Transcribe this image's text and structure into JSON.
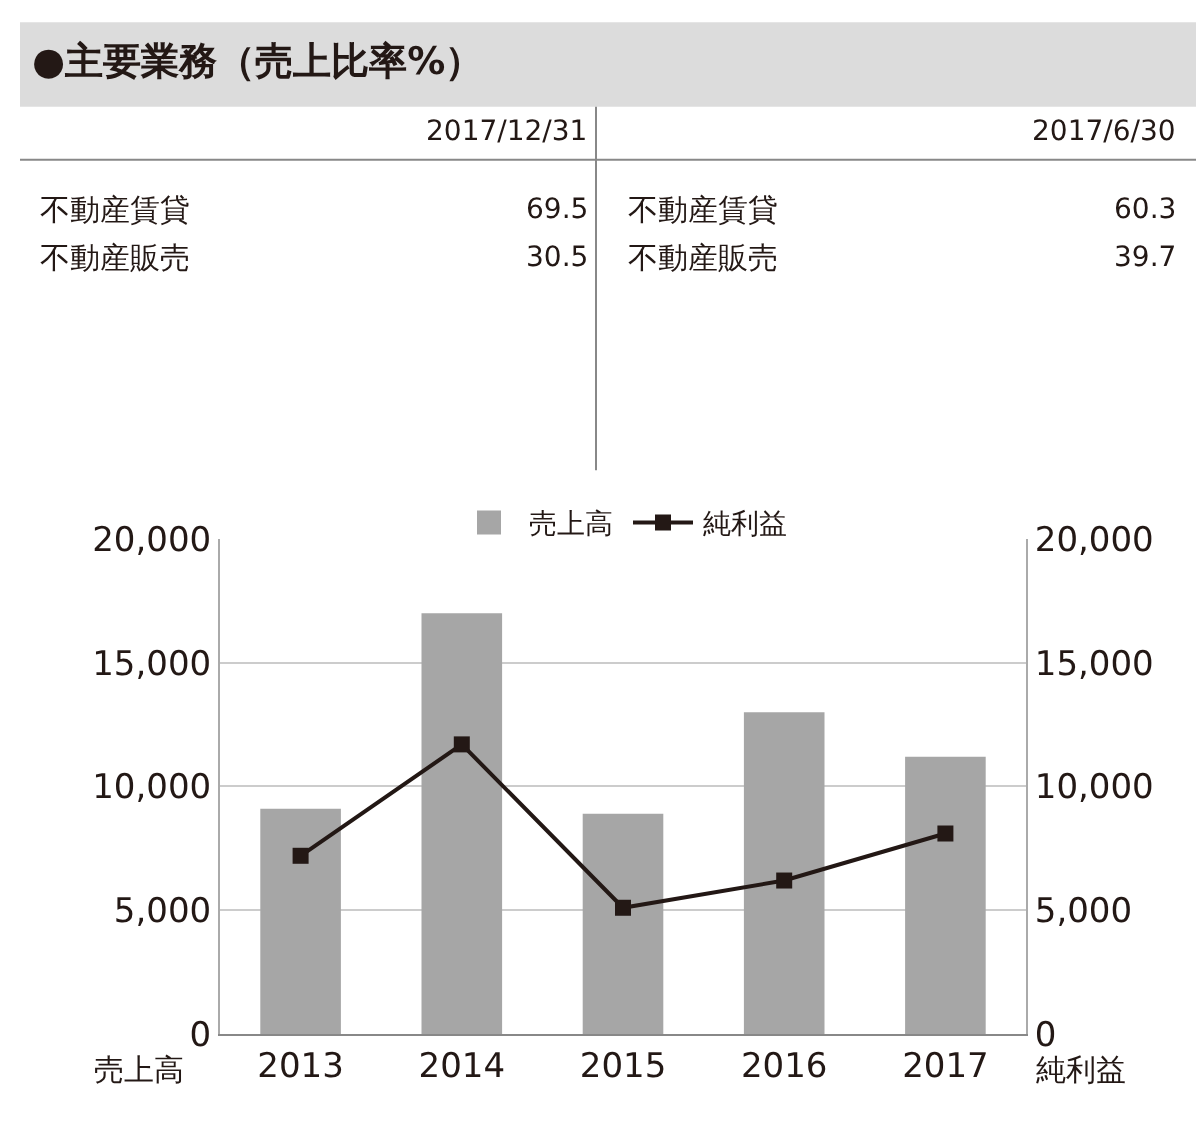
{
  "chart_data": [
    {
      "type": "other",
      "title": "●主要業務（売上比率%）",
      "categories": [
        "不動産賃貸",
        "不動産販売"
      ],
      "data_labels": true,
      "series": [
        {
          "name": "2017/12/31",
          "values": [
            69.5,
            30.5
          ]
        },
        {
          "name": "2017/6/30",
          "values": [
            60.3,
            39.7
          ]
        }
      ]
    },
    {
      "type": "bar",
      "categories": [
        "2013",
        "2014",
        "2015",
        "2016",
        "2017"
      ],
      "ylabel": "売上高",
      "y2label": "純利益",
      "ylim": [
        0,
        20000
      ],
      "yticks": [
        {
          "value": 0,
          "label": "0"
        },
        {
          "value": 5000,
          "label": "5,000"
        },
        {
          "value": 10000,
          "label": "10,000"
        },
        {
          "value": 15000,
          "label": "15,000"
        },
        {
          "value": 20000,
          "label": "20,000"
        }
      ],
      "y2lim": [
        0,
        20000
      ],
      "y2ticks": [
        {
          "value": 0,
          "label": "0"
        },
        {
          "value": 5000,
          "label": "5,000"
        },
        {
          "value": 10000,
          "label": "10,000"
        },
        {
          "value": 15000,
          "label": "15,000"
        },
        {
          "value": 20000,
          "label": "20,000"
        }
      ],
      "grid": "y",
      "legend": "top",
      "series": [
        {
          "name": "売上高",
          "type": "bar",
          "color": "#a6a6a6",
          "values": [
            9100,
            17000,
            8900,
            13000,
            11200
          ]
        },
        {
          "name": "純利益",
          "type": "line",
          "axis": "y2",
          "color": "#231815",
          "marker": "square",
          "line_style": "solid",
          "values": [
            7200,
            11700,
            5100,
            6200,
            8100
          ]
        }
      ]
    }
  ]
}
